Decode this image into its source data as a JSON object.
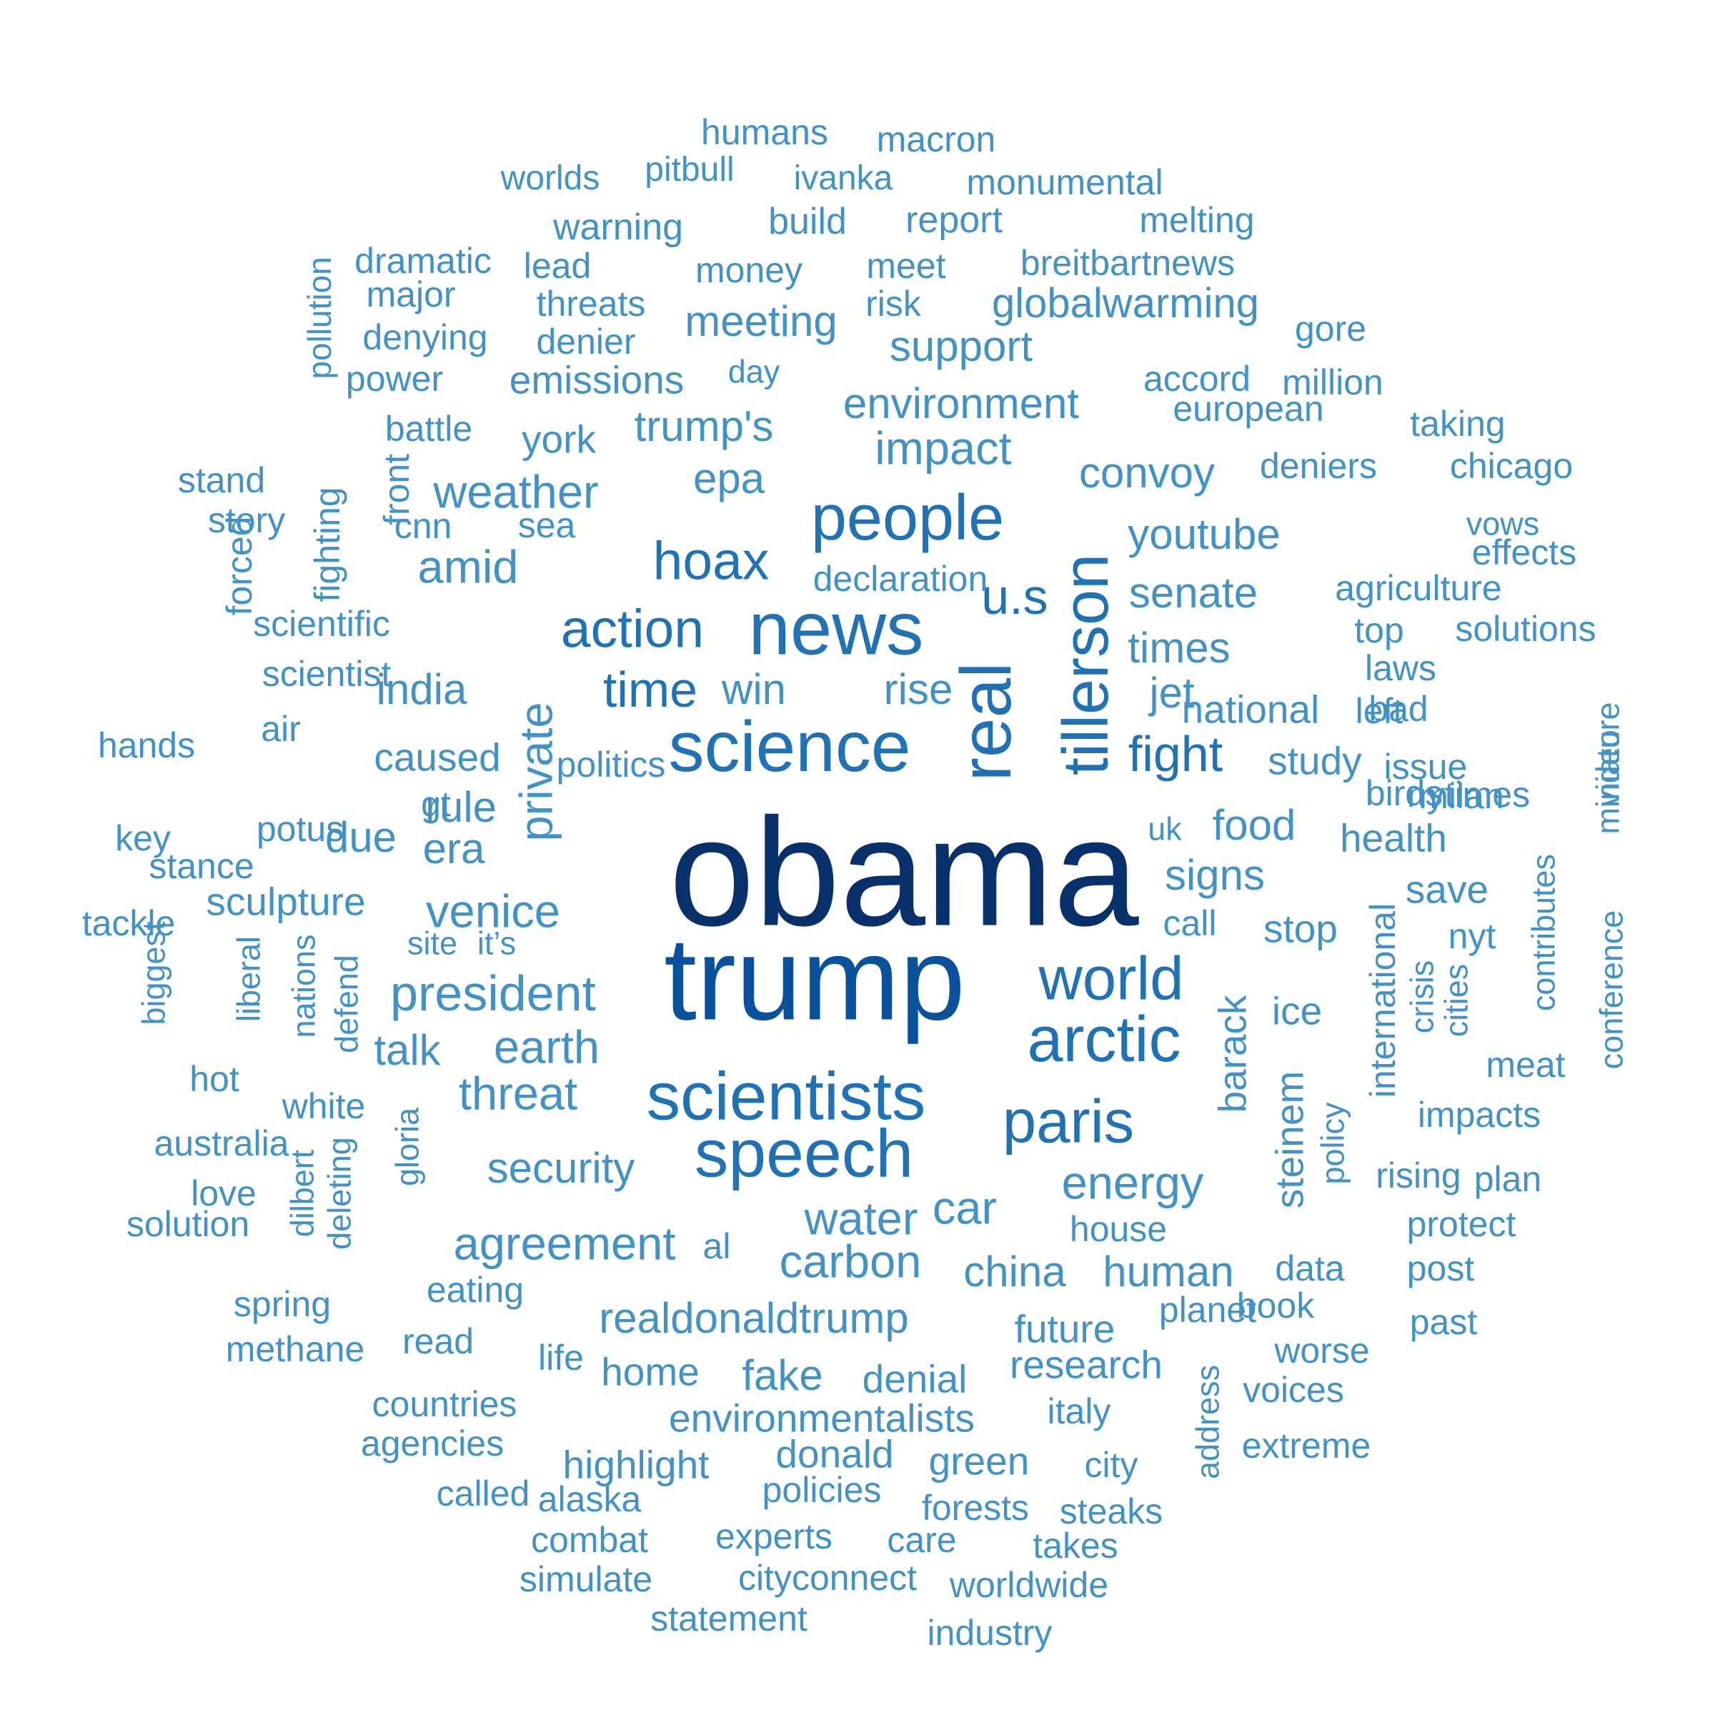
{
  "colors": {
    "background": "#ffffff",
    "darkest": "#08306b",
    "dark": "#08519c",
    "medium": "#2171b5",
    "light": "#4292c6"
  },
  "words": [
    "obama",
    "trump",
    "news",
    "science",
    "real",
    "tillerson",
    "people",
    "scientists",
    "speech",
    "arctic",
    "world",
    "paris",
    "action",
    "hoax",
    "u.s",
    "fight",
    "president",
    "time",
    "private",
    "earth",
    "impact",
    "environment",
    "trump's",
    "epa",
    "convoy",
    "youtube",
    "senate",
    "times",
    "jet",
    "national",
    "rise",
    "win",
    "study",
    "venice",
    "rule",
    "signs",
    "food",
    "stop",
    "barack",
    "threat",
    "talk",
    "security",
    "energy",
    "car",
    "water",
    "carbon",
    "agreement",
    "china",
    "human",
    "realdonaldtrump",
    "future",
    "research",
    "environmentalists",
    "fake",
    "home",
    "denial",
    "donald",
    "green",
    "highlight",
    "policies",
    "humans",
    "macron",
    "worlds",
    "pitbull",
    "ivanka",
    "monumental",
    "warning",
    "build",
    "report",
    "melting",
    "pollution",
    "dramatic",
    "lead",
    "money",
    "meet",
    "breitbartnews",
    "major",
    "threats",
    "risk",
    "globalwarming",
    "denying",
    "denier",
    "meeting",
    "gore",
    "power",
    "emissions",
    "day",
    "support",
    "accord",
    "million",
    "battle",
    "york",
    "european",
    "taking",
    "stand",
    "front",
    "weather",
    "deniers",
    "chicago",
    "story",
    "fighting",
    "cnn",
    "sea",
    "vows",
    "forced",
    "amid",
    "declaration",
    "effects",
    "scientific",
    "agriculture",
    "top",
    "solutions",
    "scientist",
    "india",
    "laws",
    "left",
    "hands",
    "air",
    "caused",
    "politics",
    "issue",
    "video",
    "gt",
    "bad",
    "key",
    "potus",
    "birds",
    "milan",
    "era",
    "due",
    "nytimes",
    "miniature",
    "stance",
    "uk",
    "health",
    "tackle",
    "sculpture",
    "call",
    "save",
    "contributes",
    "site",
    "it’s",
    "nyt",
    "biggest",
    "liberal",
    "nations",
    "defend",
    "international",
    "crisis",
    "cities",
    "conference",
    "hot",
    "ice",
    "white",
    "meat",
    "australia",
    "gloria",
    "steinem",
    "policy",
    "impacts",
    "love",
    "dilbert",
    "deleting",
    "rising",
    "plan",
    "solution",
    "house",
    "protect",
    "al",
    "eating",
    "data",
    "post",
    "spring",
    "book",
    "planet",
    "methane",
    "read",
    "past",
    "worse",
    "life",
    "address",
    "voices",
    "countries",
    "italy",
    "agencies",
    "extreme",
    "city",
    "called",
    "alaska",
    "forests",
    "steaks",
    "combat",
    "experts",
    "care",
    "takes",
    "simulate",
    "cityconnect",
    "worldwide",
    "statement",
    "industry"
  ]
}
